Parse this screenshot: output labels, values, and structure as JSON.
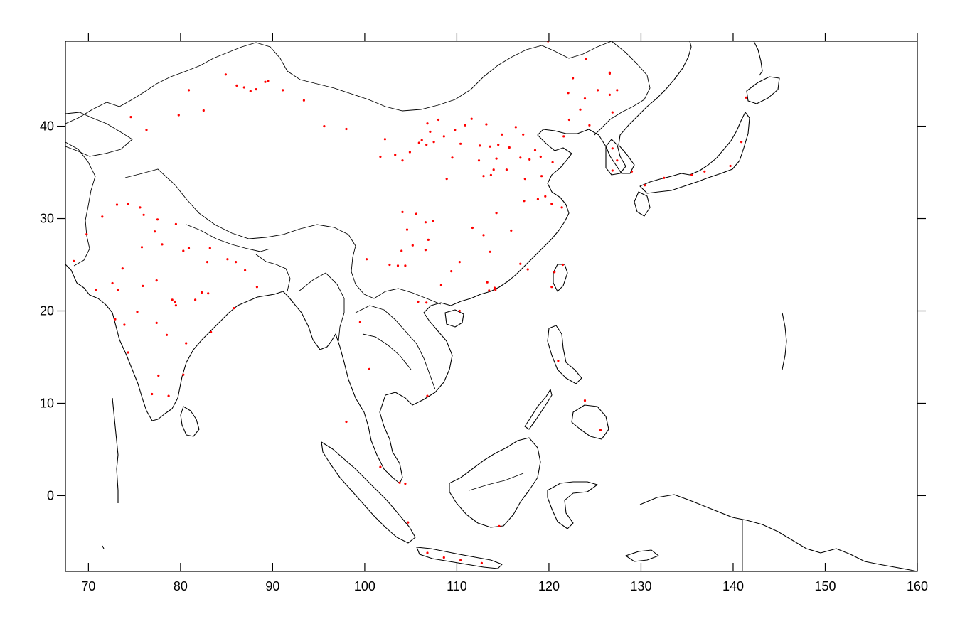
{
  "chart_data": {
    "type": "scatter",
    "title": "",
    "xlabel": "",
    "ylabel": "",
    "xlim": [
      67.5,
      160
    ],
    "ylim": [
      -8.2,
      49.2
    ],
    "xticks": [
      70,
      80,
      90,
      100,
      110,
      120,
      130,
      140,
      150,
      160
    ],
    "yticks": [
      0,
      10,
      20,
      30,
      40
    ],
    "grid": false,
    "series": [
      {
        "color": "#ff0000",
        "points": [
          [
            74.6,
            41.0
          ],
          [
            76.3,
            39.6
          ],
          [
            79.8,
            41.2
          ],
          [
            80.9,
            43.9
          ],
          [
            82.5,
            41.7
          ],
          [
            84.9,
            45.6
          ],
          [
            86.1,
            44.4
          ],
          [
            86.9,
            44.2
          ],
          [
            87.6,
            43.8
          ],
          [
            88.2,
            44.0
          ],
          [
            89.2,
            44.8
          ],
          [
            89.5,
            44.9
          ],
          [
            91.1,
            43.9
          ],
          [
            93.4,
            42.8
          ],
          [
            95.6,
            40.0
          ],
          [
            98.0,
            39.7
          ],
          [
            101.7,
            36.7
          ],
          [
            102.2,
            38.6
          ],
          [
            103.3,
            36.9
          ],
          [
            104.1,
            36.3
          ],
          [
            104.9,
            37.2
          ],
          [
            105.9,
            38.2
          ],
          [
            106.2,
            38.5
          ],
          [
            106.7,
            38.0
          ],
          [
            106.8,
            40.3
          ],
          [
            107.1,
            39.4
          ],
          [
            107.5,
            38.3
          ],
          [
            108.0,
            40.7
          ],
          [
            108.6,
            38.9
          ],
          [
            108.9,
            34.3
          ],
          [
            109.5,
            36.6
          ],
          [
            109.8,
            39.6
          ],
          [
            110.4,
            38.1
          ],
          [
            110.9,
            40.1
          ],
          [
            111.6,
            40.8
          ],
          [
            112.4,
            36.3
          ],
          [
            112.5,
            37.9
          ],
          [
            112.9,
            34.6
          ],
          [
            113.2,
            40.2
          ],
          [
            113.6,
            37.8
          ],
          [
            113.7,
            34.7
          ],
          [
            114.0,
            35.3
          ],
          [
            114.3,
            36.5
          ],
          [
            114.5,
            38.0
          ],
          [
            114.9,
            39.1
          ],
          [
            115.4,
            35.3
          ],
          [
            115.7,
            37.7
          ],
          [
            116.4,
            39.9
          ],
          [
            116.9,
            36.6
          ],
          [
            117.2,
            39.1
          ],
          [
            117.4,
            34.3
          ],
          [
            117.9,
            36.4
          ],
          [
            118.5,
            37.4
          ],
          [
            119.1,
            36.7
          ],
          [
            117.3,
            31.9
          ],
          [
            118.8,
            32.1
          ],
          [
            119.6,
            32.4
          ],
          [
            120.3,
            31.6
          ],
          [
            121.4,
            31.2
          ],
          [
            119.2,
            34.6
          ],
          [
            120.4,
            36.1
          ],
          [
            121.6,
            38.9
          ],
          [
            123.4,
            41.8
          ],
          [
            122.2,
            40.7
          ],
          [
            124.4,
            40.1
          ],
          [
            125.3,
            43.9
          ],
          [
            126.6,
            45.8
          ],
          [
            126.6,
            45.7
          ],
          [
            126.9,
            41.5
          ],
          [
            122.6,
            45.2
          ],
          [
            124.0,
            47.3
          ],
          [
            122.1,
            43.6
          ],
          [
            119.9,
            49.2
          ],
          [
            126.6,
            43.4
          ],
          [
            127.4,
            43.9
          ],
          [
            123.9,
            43.0
          ],
          [
            105.6,
            30.5
          ],
          [
            104.1,
            30.7
          ],
          [
            104.6,
            28.8
          ],
          [
            105.2,
            27.1
          ],
          [
            106.6,
            26.6
          ],
          [
            106.6,
            29.6
          ],
          [
            107.4,
            29.7
          ],
          [
            106.9,
            27.7
          ],
          [
            104.0,
            26.5
          ],
          [
            104.4,
            24.9
          ],
          [
            103.6,
            24.9
          ],
          [
            102.7,
            25.0
          ],
          [
            100.2,
            25.6
          ],
          [
            108.3,
            22.8
          ],
          [
            109.4,
            24.3
          ],
          [
            110.3,
            25.3
          ],
          [
            113.3,
            23.1
          ],
          [
            114.1,
            22.5
          ],
          [
            112.9,
            28.2
          ],
          [
            113.6,
            26.4
          ],
          [
            111.7,
            29.0
          ],
          [
            114.3,
            30.6
          ],
          [
            115.9,
            28.7
          ],
          [
            116.9,
            25.1
          ],
          [
            117.7,
            24.5
          ],
          [
            110.3,
            20.0
          ],
          [
            121.5,
            25.0
          ],
          [
            120.6,
            24.2
          ],
          [
            120.3,
            22.6
          ],
          [
            76.0,
            30.4
          ],
          [
            77.2,
            28.6
          ],
          [
            75.8,
            26.9
          ],
          [
            78.0,
            27.2
          ],
          [
            80.9,
            26.8
          ],
          [
            82.9,
            25.3
          ],
          [
            83.2,
            26.8
          ],
          [
            85.1,
            25.6
          ],
          [
            86.0,
            25.3
          ],
          [
            87.0,
            24.4
          ],
          [
            88.3,
            22.6
          ],
          [
            81.6,
            21.2
          ],
          [
            79.1,
            21.2
          ],
          [
            77.4,
            23.3
          ],
          [
            75.9,
            22.7
          ],
          [
            73.7,
            24.6
          ],
          [
            72.6,
            23.0
          ],
          [
            73.2,
            22.3
          ],
          [
            79.4,
            21.0
          ],
          [
            82.3,
            22.0
          ],
          [
            83.0,
            21.9
          ],
          [
            79.5,
            20.6
          ],
          [
            78.5,
            17.4
          ],
          [
            80.3,
            13.1
          ],
          [
            77.6,
            13.0
          ],
          [
            76.9,
            11.0
          ],
          [
            78.7,
            10.8
          ],
          [
            72.9,
            19.1
          ],
          [
            73.9,
            18.5
          ],
          [
            74.3,
            15.5
          ],
          [
            75.3,
            19.9
          ],
          [
            77.4,
            18.7
          ],
          [
            80.6,
            16.5
          ],
          [
            83.3,
            17.7
          ],
          [
            85.8,
            20.3
          ],
          [
            68.4,
            25.4
          ],
          [
            69.8,
            28.3
          ],
          [
            71.5,
            30.2
          ],
          [
            73.1,
            31.5
          ],
          [
            74.3,
            31.6
          ],
          [
            75.6,
            31.2
          ],
          [
            77.5,
            29.9
          ],
          [
            79.5,
            29.4
          ],
          [
            80.3,
            26.5
          ],
          [
            70.8,
            22.3
          ],
          [
            99.5,
            18.8
          ],
          [
            100.5,
            13.7
          ],
          [
            98.0,
            8.0
          ],
          [
            101.7,
            3.1
          ],
          [
            103.8,
            1.4
          ],
          [
            104.4,
            1.3
          ],
          [
            106.8,
            10.8
          ],
          [
            105.8,
            21.0
          ],
          [
            106.7,
            20.9
          ],
          [
            110.4,
            -7.0
          ],
          [
            112.7,
            -7.3
          ],
          [
            106.8,
            -6.2
          ],
          [
            108.6,
            -6.7
          ],
          [
            104.7,
            -2.9
          ],
          [
            114.6,
            -3.3
          ],
          [
            125.6,
            7.1
          ],
          [
            121.0,
            14.6
          ],
          [
            123.9,
            10.3
          ],
          [
            139.7,
            35.7
          ],
          [
            135.5,
            34.7
          ],
          [
            132.5,
            34.4
          ],
          [
            136.9,
            35.1
          ],
          [
            140.9,
            38.3
          ],
          [
            141.4,
            43.1
          ],
          [
            130.4,
            33.6
          ],
          [
            129.0,
            35.1
          ],
          [
            126.9,
            37.6
          ],
          [
            127.4,
            36.3
          ],
          [
            126.9,
            35.2
          ],
          [
            113.5,
            22.2
          ],
          [
            114.2,
            22.3
          ]
        ]
      }
    ]
  }
}
